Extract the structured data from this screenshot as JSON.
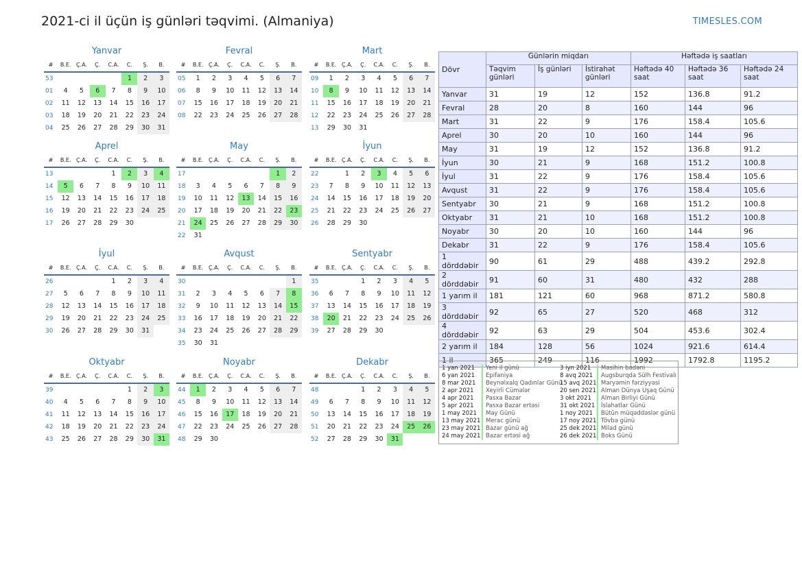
{
  "header": {
    "title": "2021-ci il üçün iş günləri təqvimi. (Almaniya)",
    "brand": "TIMESLES.COM"
  },
  "calendar": {
    "weekday_headers": [
      "#",
      "B.E.",
      "Ç.A.",
      "Ç.",
      "C.A.",
      "C.",
      "Ş.",
      "B."
    ],
    "months": [
      {
        "name": "Yanvar",
        "weeks": [
          "53",
          "01",
          "02",
          "03",
          "04"
        ],
        "offset": 4,
        "days": 31,
        "holidays": [
          1,
          6
        ]
      },
      {
        "name": "Fevral",
        "weeks": [
          "05",
          "06",
          "07",
          "08"
        ],
        "offset": 0,
        "days": 28,
        "holidays": []
      },
      {
        "name": "Mart",
        "weeks": [
          "09",
          "10",
          "11",
          "12",
          "13"
        ],
        "offset": 0,
        "days": 31,
        "holidays": [
          8
        ]
      },
      {
        "name": "Aprel",
        "weeks": [
          "13",
          "14",
          "15",
          "16",
          "17"
        ],
        "offset": 3,
        "days": 30,
        "holidays": [
          2,
          4,
          5
        ]
      },
      {
        "name": "May",
        "weeks": [
          "17",
          "18",
          "19",
          "20",
          "21",
          "22"
        ],
        "offset": 5,
        "days": 31,
        "holidays": [
          1,
          13,
          23,
          24
        ]
      },
      {
        "name": "İyun",
        "weeks": [
          "22",
          "23",
          "24",
          "25",
          "26"
        ],
        "offset": 1,
        "days": 30,
        "holidays": [
          3
        ]
      },
      {
        "name": "İyul",
        "weeks": [
          "26",
          "27",
          "28",
          "29",
          "30"
        ],
        "offset": 3,
        "days": 31,
        "holidays": []
      },
      {
        "name": "Avqust",
        "weeks": [
          "30",
          "31",
          "32",
          "33",
          "34",
          "35"
        ],
        "offset": 6,
        "days": 31,
        "holidays": [
          8,
          15
        ]
      },
      {
        "name": "Sentyabr",
        "weeks": [
          "35",
          "36",
          "37",
          "38",
          "39"
        ],
        "offset": 2,
        "days": 30,
        "holidays": [
          20
        ]
      },
      {
        "name": "Oktyabr",
        "weeks": [
          "39",
          "40",
          "41",
          "42",
          "43"
        ],
        "offset": 4,
        "days": 31,
        "holidays": [
          3,
          31
        ]
      },
      {
        "name": "Noyabr",
        "weeks": [
          "44",
          "45",
          "46",
          "47",
          "48"
        ],
        "offset": 0,
        "days": 30,
        "holidays": [
          1,
          17
        ]
      },
      {
        "name": "Dekabr",
        "weeks": [
          "48",
          "49",
          "50",
          "51",
          "52"
        ],
        "offset": 2,
        "days": 31,
        "holidays": [
          25,
          26,
          31
        ]
      }
    ]
  },
  "summary": {
    "period_header": "Dövr",
    "group_days": "Günlərin miqdarı",
    "group_hours": "Həftədə iş saatları",
    "cols": [
      "Təqvim günləri",
      "İş günləri",
      "İstirahət günləri",
      "Həftədə 40 saat",
      "Həftədə 36 saat",
      "Həftədə 24 saat"
    ],
    "rows": [
      [
        "Yanvar",
        "31",
        "19",
        "12",
        "152",
        "136.8",
        "91.2"
      ],
      [
        "Fevral",
        "28",
        "20",
        "8",
        "160",
        "144",
        "96"
      ],
      [
        "Mart",
        "31",
        "22",
        "9",
        "176",
        "158.4",
        "105.6"
      ],
      [
        "Aprel",
        "30",
        "20",
        "10",
        "160",
        "144",
        "96"
      ],
      [
        "May",
        "31",
        "19",
        "12",
        "152",
        "136.8",
        "91.2"
      ],
      [
        "İyun",
        "30",
        "21",
        "9",
        "168",
        "151.2",
        "100.8"
      ],
      [
        "İyul",
        "31",
        "22",
        "9",
        "176",
        "158.4",
        "105.6"
      ],
      [
        "Avqust",
        "31",
        "22",
        "9",
        "176",
        "158.4",
        "105.6"
      ],
      [
        "Sentyabr",
        "30",
        "21",
        "9",
        "168",
        "151.2",
        "100.8"
      ],
      [
        "Oktyabr",
        "31",
        "21",
        "10",
        "168",
        "151.2",
        "100.8"
      ],
      [
        "Noyabr",
        "30",
        "20",
        "10",
        "160",
        "144",
        "96"
      ],
      [
        "Dekabr",
        "31",
        "22",
        "9",
        "176",
        "158.4",
        "105.6"
      ],
      [
        "1 dörddəbir",
        "90",
        "61",
        "29",
        "488",
        "439.2",
        "292.8"
      ],
      [
        "2 dörddəbir",
        "91",
        "60",
        "31",
        "480",
        "432",
        "288"
      ],
      [
        "1 yarım il",
        "181",
        "121",
        "60",
        "968",
        "871.2",
        "580.8"
      ],
      [
        "3 dörddəbir",
        "92",
        "65",
        "27",
        "520",
        "468",
        "312"
      ],
      [
        "4 dörddəbir",
        "92",
        "63",
        "29",
        "504",
        "453.6",
        "302.4"
      ],
      [
        "2 yarım il",
        "184",
        "128",
        "56",
        "1024",
        "921.6",
        "614.4"
      ],
      [
        "1 il",
        "365",
        "249",
        "116",
        "1992",
        "1792.8",
        "1195.2"
      ]
    ]
  },
  "holidays": {
    "left": [
      {
        "date": "1 yan 2021",
        "name": "Yeni il günü"
      },
      {
        "date": "6 yan 2021",
        "name": "Epifaniya"
      },
      {
        "date": "8 mar 2021",
        "name": "Beynəlxalq Qadınlar Günü"
      },
      {
        "date": "2 apr 2021",
        "name": "Xeyirli Cümələr"
      },
      {
        "date": "4 apr 2021",
        "name": "Pasxa Bazar"
      },
      {
        "date": "5 apr 2021",
        "name": "Pasxa Bazar ertəsi"
      },
      {
        "date": "1 may 2021",
        "name": "May Günü"
      },
      {
        "date": "13 may 2021",
        "name": "Merac günü"
      },
      {
        "date": "23 may 2021",
        "name": "Bazar günü ağ"
      },
      {
        "date": "24 may 2021",
        "name": "Bazar ertəsi ağ"
      }
    ],
    "right": [
      {
        "date": "3 iyn 2021",
        "name": "Məsihin bədəni"
      },
      {
        "date": "8 avq 2021",
        "name": "Augsburqda Sülh Festivalı"
      },
      {
        "date": "15 avq 2021",
        "name": "Məryəmin fərziyyəsi"
      },
      {
        "date": "20 sen 2021",
        "name": "Alman Dünya Uşaq Günü"
      },
      {
        "date": "3 okt 2021",
        "name": "Alman Birliyi Günü"
      },
      {
        "date": "31 okt 2021",
        "name": "İslahatlar Günü"
      },
      {
        "date": "1 noy 2021",
        "name": "Bütün müqəddəslər günü"
      },
      {
        "date": "17 noy 2021",
        "name": "Tövbə günü"
      },
      {
        "date": "25 dek 2021",
        "name": "Milad günü"
      },
      {
        "date": "26 dek 2021",
        "name": "Boks Günü"
      }
    ]
  }
}
